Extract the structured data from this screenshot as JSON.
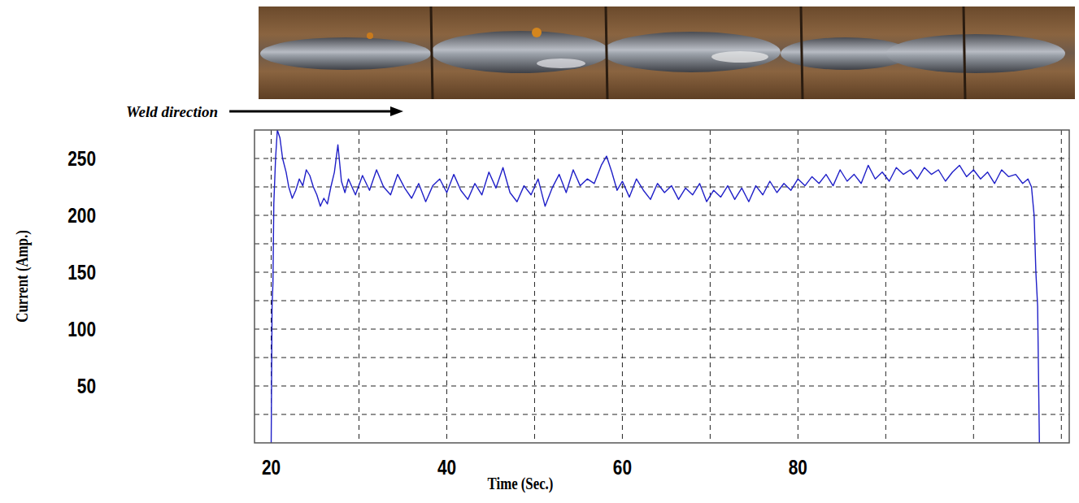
{
  "chart_data": {
    "type": "line",
    "xlabel": "Time (Sec.)",
    "ylabel": "Current (Amp.)",
    "annotation": "Weld direction",
    "color": "#2020c8",
    "grid": true,
    "xlim": [
      18.1,
      110.9
    ],
    "ylim": [
      0,
      275
    ],
    "xticks": [
      20,
      40,
      60,
      80
    ],
    "yticks": [
      50,
      100,
      150,
      200,
      250
    ],
    "x": [
      20.0,
      20.1,
      20.2,
      20.3,
      20.5,
      20.7,
      21.0,
      21.3,
      21.7,
      22.0,
      22.4,
      22.8,
      23.2,
      23.6,
      24.0,
      24.4,
      24.8,
      25.2,
      25.6,
      26.0,
      26.4,
      26.8,
      27.2,
      27.6,
      28.0,
      28.4,
      28.8,
      29.6,
      30.4,
      31.2,
      32.0,
      32.8,
      33.6,
      34.4,
      35.2,
      36.0,
      36.8,
      37.6,
      38.4,
      39.2,
      40.0,
      40.8,
      41.6,
      42.4,
      43.2,
      44.0,
      44.8,
      45.6,
      46.4,
      47.2,
      48.0,
      48.8,
      49.6,
      50.4,
      51.2,
      52.0,
      52.8,
      53.6,
      54.4,
      55.2,
      56.0,
      56.8,
      57.6,
      58.2,
      58.8,
      59.4,
      60.0,
      60.8,
      61.6,
      62.4,
      63.2,
      64.0,
      64.8,
      65.6,
      66.4,
      67.2,
      68.0,
      68.8,
      69.6,
      70.4,
      71.2,
      72.0,
      72.8,
      73.6,
      74.4,
      75.2,
      76.0,
      76.8,
      77.6,
      78.4,
      79.2,
      80.0,
      80.8,
      81.6,
      82.4,
      83.2,
      84.0,
      84.8,
      85.6,
      86.4,
      87.2,
      88.0,
      88.8,
      89.6,
      90.4,
      91.2,
      92.0,
      92.8,
      93.6,
      94.4,
      95.2,
      96.0,
      96.8,
      97.6,
      98.4,
      99.2,
      100.0,
      100.8,
      101.6,
      102.4,
      103.2,
      104.0,
      104.8,
      105.6,
      106.2,
      106.6,
      106.9,
      107.1,
      107.3,
      107.5
    ],
    "values": [
      0,
      120,
      140,
      210,
      250,
      275,
      268,
      250,
      238,
      225,
      215,
      222,
      232,
      226,
      240,
      235,
      225,
      218,
      208,
      215,
      210,
      225,
      238,
      262,
      230,
      220,
      232,
      218,
      235,
      222,
      240,
      225,
      218,
      236,
      224,
      215,
      228,
      212,
      226,
      232,
      220,
      236,
      222,
      214,
      228,
      218,
      238,
      224,
      242,
      220,
      212,
      226,
      218,
      232,
      208,
      224,
      236,
      220,
      240,
      226,
      232,
      228,
      244,
      252,
      238,
      222,
      230,
      216,
      232,
      222,
      214,
      228,
      220,
      226,
      214,
      224,
      218,
      228,
      212,
      222,
      216,
      226,
      214,
      224,
      212,
      226,
      218,
      230,
      220,
      228,
      222,
      232,
      226,
      234,
      228,
      236,
      226,
      240,
      230,
      236,
      228,
      244,
      232,
      238,
      230,
      242,
      236,
      240,
      232,
      242,
      236,
      240,
      230,
      238,
      244,
      234,
      240,
      232,
      238,
      228,
      240,
      234,
      236,
      228,
      232,
      225,
      200,
      150,
      120,
      0
    ]
  }
}
